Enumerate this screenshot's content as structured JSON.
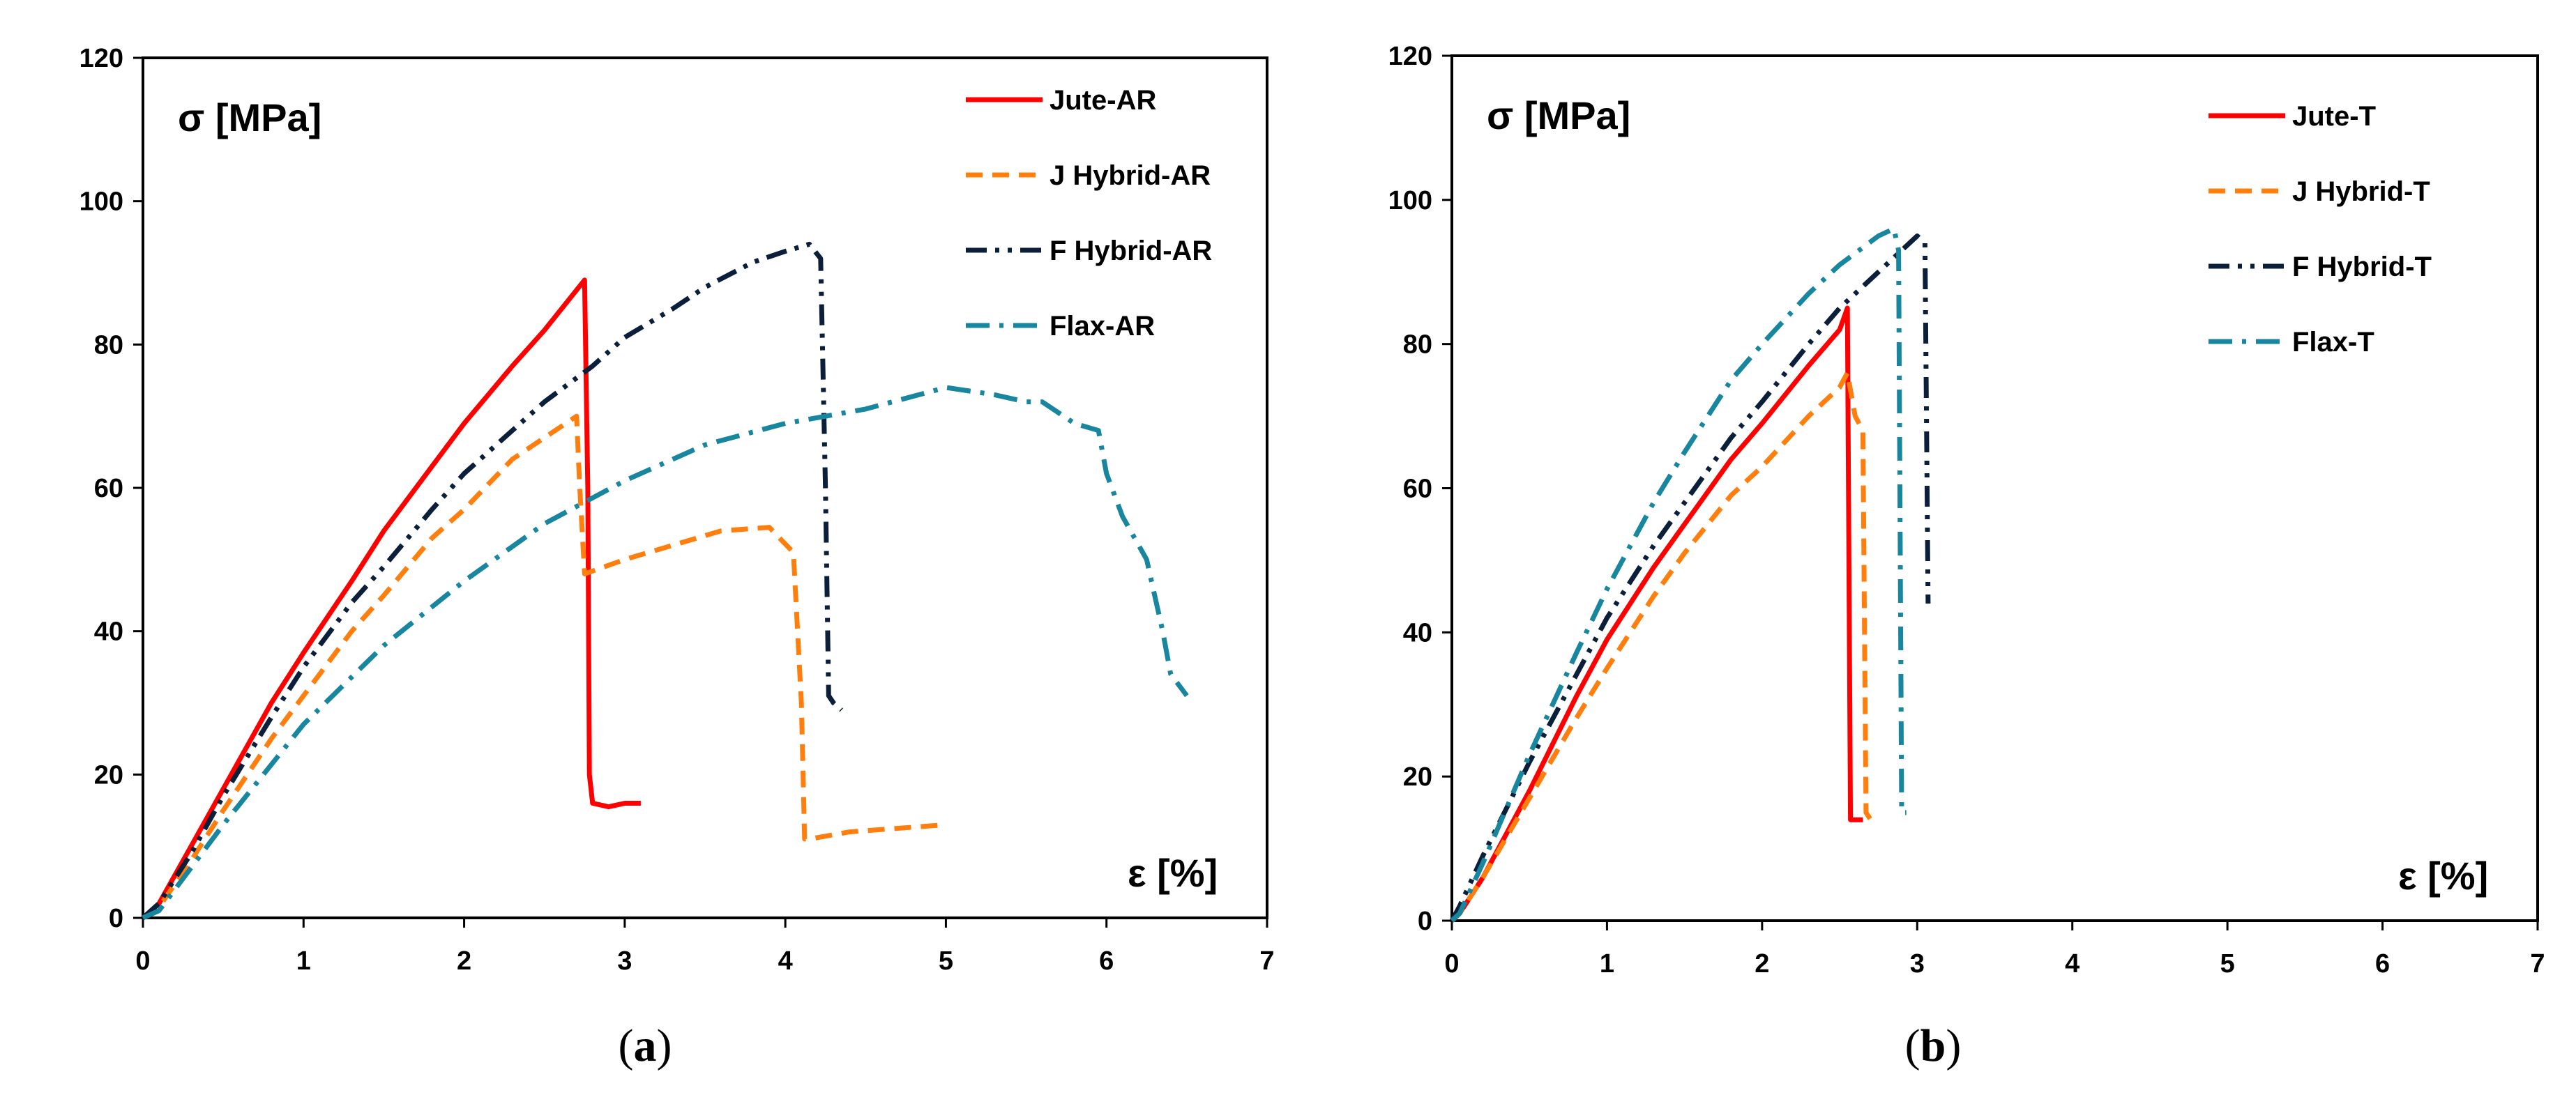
{
  "chart_data": [
    {
      "type": "line",
      "panel": "a",
      "caption": {
        "open": "(",
        "letter": "a",
        "close": ")"
      },
      "ylabel": "σ [MPa]",
      "xlabel": "ε [%]",
      "xlim": [
        0,
        7
      ],
      "ylim": [
        0,
        120
      ],
      "xticks": [
        0,
        1,
        2,
        3,
        4,
        5,
        6,
        7
      ],
      "yticks": [
        0,
        20,
        40,
        60,
        80,
        100,
        120
      ],
      "grid": false,
      "legend_position": "top-right",
      "series": [
        {
          "name": "Jute-AR",
          "color": "#ff0000",
          "dash": "solid",
          "x": [
            0,
            0.1,
            0.3,
            0.5,
            0.8,
            1.0,
            1.3,
            1.5,
            1.8,
            2.0,
            2.3,
            2.5,
            2.75,
            2.77,
            2.78,
            2.8,
            2.9,
            3.0,
            3.1
          ],
          "y": [
            0,
            2,
            10,
            18,
            30,
            37,
            47,
            54,
            63,
            69,
            77,
            82,
            89,
            60,
            20,
            16,
            15.5,
            16,
            16
          ]
        },
        {
          "name": "J Hybrid-AR",
          "color": "#ff7f0e",
          "dash": "dashed",
          "x": [
            0,
            0.1,
            0.3,
            0.5,
            0.8,
            1.0,
            1.3,
            1.5,
            1.8,
            2.0,
            2.3,
            2.5,
            2.7,
            2.72,
            2.75,
            3.0,
            3.3,
            3.6,
            3.9,
            4.05,
            4.1,
            4.12,
            4.15,
            4.4,
            4.7,
            5.0
          ],
          "y": [
            0,
            1.5,
            8,
            15,
            25,
            31,
            40,
            45,
            53,
            57,
            64,
            67,
            70,
            60,
            48,
            50,
            52,
            54,
            54.5,
            51,
            30,
            11,
            11,
            12,
            12.5,
            13
          ]
        },
        {
          "name": "F Hybrid-AR",
          "color": "#0b1f3a",
          "dash": "dashdotdot",
          "x": [
            0,
            0.1,
            0.3,
            0.5,
            0.8,
            1.0,
            1.3,
            1.5,
            1.8,
            2.0,
            2.3,
            2.5,
            2.8,
            3.0,
            3.3,
            3.5,
            3.8,
            4.0,
            4.15,
            4.22,
            4.25,
            4.27,
            4.3,
            4.35
          ],
          "y": [
            0,
            2,
            9,
            17,
            28,
            35,
            44,
            49,
            57,
            62,
            68,
            72,
            77,
            81,
            85,
            88,
            91.5,
            93,
            94,
            92,
            60,
            31,
            30,
            29
          ]
        },
        {
          "name": "Flax-AR",
          "color": "#17869e",
          "dash": "dashdot",
          "x": [
            0,
            0.1,
            0.3,
            0.5,
            1.0,
            1.5,
            2.0,
            2.5,
            3.0,
            3.5,
            4.0,
            4.5,
            5.0,
            5.3,
            5.5,
            5.6,
            5.8,
            5.95,
            6.0,
            6.1,
            6.2,
            6.25,
            6.3,
            6.35,
            6.4,
            6.5
          ],
          "y": [
            0,
            1,
            7,
            13,
            27,
            38,
            47,
            55,
            61,
            66,
            69,
            71,
            74,
            73,
            72,
            72,
            69,
            68,
            62,
            56,
            52,
            50,
            45,
            40,
            34,
            31
          ]
        }
      ]
    },
    {
      "type": "line",
      "panel": "b",
      "caption": {
        "open": "(",
        "letter": "b",
        "close": ")"
      },
      "ylabel": "σ [MPa]",
      "xlabel": "ε [%]",
      "xlim": [
        0,
        7
      ],
      "ylim": [
        0,
        120
      ],
      "xticks": [
        0,
        1,
        2,
        3,
        4,
        5,
        6,
        7
      ],
      "yticks": [
        0,
        20,
        40,
        60,
        80,
        100,
        120
      ],
      "grid": false,
      "legend_position": "top-right",
      "series": [
        {
          "name": "Jute-T",
          "color": "#ff0000",
          "dash": "solid",
          "x": [
            0,
            0.05,
            0.2,
            0.5,
            0.8,
            1.0,
            1.3,
            1.5,
            1.8,
            2.0,
            2.3,
            2.5,
            2.55,
            2.57,
            2.6,
            2.65
          ],
          "y": [
            0,
            1,
            6,
            18,
            31,
            39,
            49,
            55,
            64,
            69,
            77,
            82,
            85,
            14,
            14,
            14
          ]
        },
        {
          "name": "J Hybrid-T",
          "color": "#ff7f0e",
          "dash": "dashed",
          "x": [
            0,
            0.05,
            0.2,
            0.5,
            0.8,
            1.0,
            1.3,
            1.5,
            1.8,
            2.0,
            2.3,
            2.5,
            2.55,
            2.6,
            2.65,
            2.67,
            2.7
          ],
          "y": [
            0,
            1,
            6,
            17,
            28,
            35,
            45,
            51,
            59,
            63,
            70,
            74,
            76,
            70,
            68,
            15,
            14
          ]
        },
        {
          "name": "F Hybrid-T",
          "color": "#0b1f3a",
          "dash": "dashdotdot",
          "x": [
            0,
            0.05,
            0.2,
            0.5,
            0.8,
            1.0,
            1.3,
            1.5,
            1.8,
            2.0,
            2.3,
            2.5,
            2.8,
            3.0,
            3.05,
            3.07
          ],
          "y": [
            0,
            2,
            9,
            22,
            34,
            42,
            52,
            58,
            67,
            72,
            80,
            85,
            91,
            95,
            94,
            44
          ]
        },
        {
          "name": "Flax-T",
          "color": "#17869e",
          "dash": "dashdot",
          "x": [
            0,
            0.05,
            0.2,
            0.5,
            0.8,
            1.0,
            1.3,
            1.5,
            1.8,
            2.0,
            2.3,
            2.5,
            2.75,
            2.85,
            2.88,
            2.9,
            2.93
          ],
          "y": [
            0,
            1,
            8,
            23,
            37,
            46,
            58,
            65,
            75,
            80,
            87,
            91,
            95,
            96,
            93,
            15,
            15
          ]
        }
      ]
    }
  ]
}
